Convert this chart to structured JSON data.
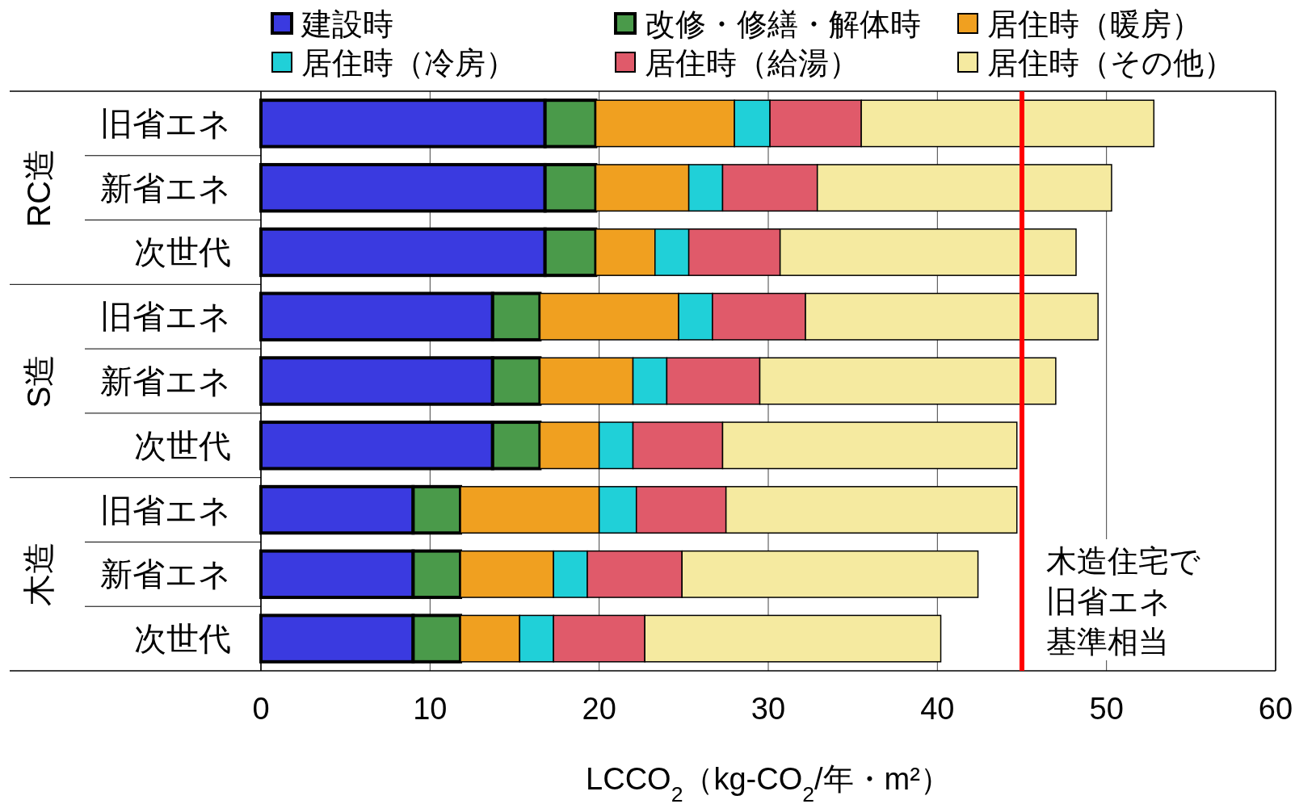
{
  "chart_data": {
    "type": "bar",
    "orientation": "horizontal",
    "stacked": true,
    "categories": [
      "旧省エネ",
      "新省エネ",
      "次世代",
      "旧省エネ",
      "新省エネ",
      "次世代",
      "旧省エネ",
      "新省エネ",
      "次世代"
    ],
    "series": [
      {
        "name": "建設時",
        "color": "#3a3ae0",
        "values": [
          16.8,
          16.8,
          16.8,
          13.7,
          13.7,
          13.7,
          9.0,
          9.0,
          9.0
        ]
      },
      {
        "name": "改修・修繕・解体時",
        "color": "#4a9a4a",
        "values": [
          3.0,
          3.0,
          3.0,
          2.8,
          2.8,
          2.8,
          2.8,
          2.8,
          2.8
        ]
      },
      {
        "name": "居住時（暖房）",
        "color": "#f0a020",
        "values": [
          8.2,
          5.5,
          3.5,
          8.2,
          5.5,
          3.5,
          8.2,
          5.5,
          3.5
        ]
      },
      {
        "name": "居住時（冷房）",
        "color": "#20d0d8",
        "values": [
          2.1,
          2.0,
          2.0,
          2.0,
          2.0,
          2.0,
          2.2,
          2.0,
          2.0
        ]
      },
      {
        "name": "居住時（給湯）",
        "color": "#e05a6a",
        "values": [
          5.4,
          5.6,
          5.4,
          5.5,
          5.5,
          5.3,
          5.3,
          5.6,
          5.4
        ]
      },
      {
        "name": "居住時（その他）",
        "color": "#f5eaa0",
        "values": [
          17.3,
          17.4,
          17.5,
          17.3,
          17.5,
          17.4,
          17.2,
          17.5,
          17.5
        ]
      }
    ],
    "xlim": [
      0,
      60
    ],
    "xticks": [
      0,
      10,
      20,
      30,
      40,
      50,
      60
    ],
    "xlabel": "LCCO$_{2}$（kg-CO$_{2}$/年・m²）",
    "grid": "x",
    "legend": "top",
    "ref_lines": [
      {
        "axis": "x",
        "value": 45,
        "color": "#ff0000"
      }
    ],
    "annotations": [
      "RC造",
      "S造",
      "木造",
      "木造住宅で",
      "旧省エネ",
      "基準相当"
    ]
  }
}
